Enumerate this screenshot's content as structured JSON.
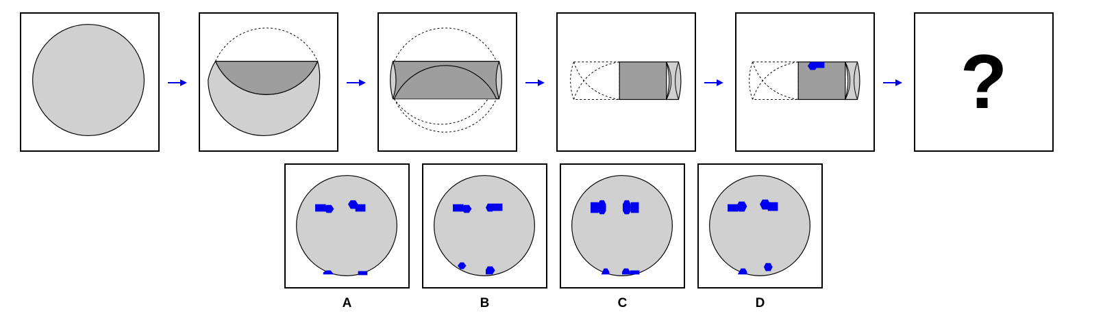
{
  "puzzle": {
    "question_symbol": "?"
  },
  "options": [
    {
      "label": "A"
    },
    {
      "label": "B"
    },
    {
      "label": "C"
    },
    {
      "label": "D"
    }
  ],
  "colors": {
    "paper_fill": "#d0d0d0",
    "folded_fill": "#9e9e9e",
    "hole_blue": "#0000ee",
    "arrow_blue": "#0000ee",
    "outline": "#000000"
  },
  "icons": {
    "step_arrow": "right-arrow-icon",
    "hole_shape": "hexagon-and-square-hole"
  }
}
